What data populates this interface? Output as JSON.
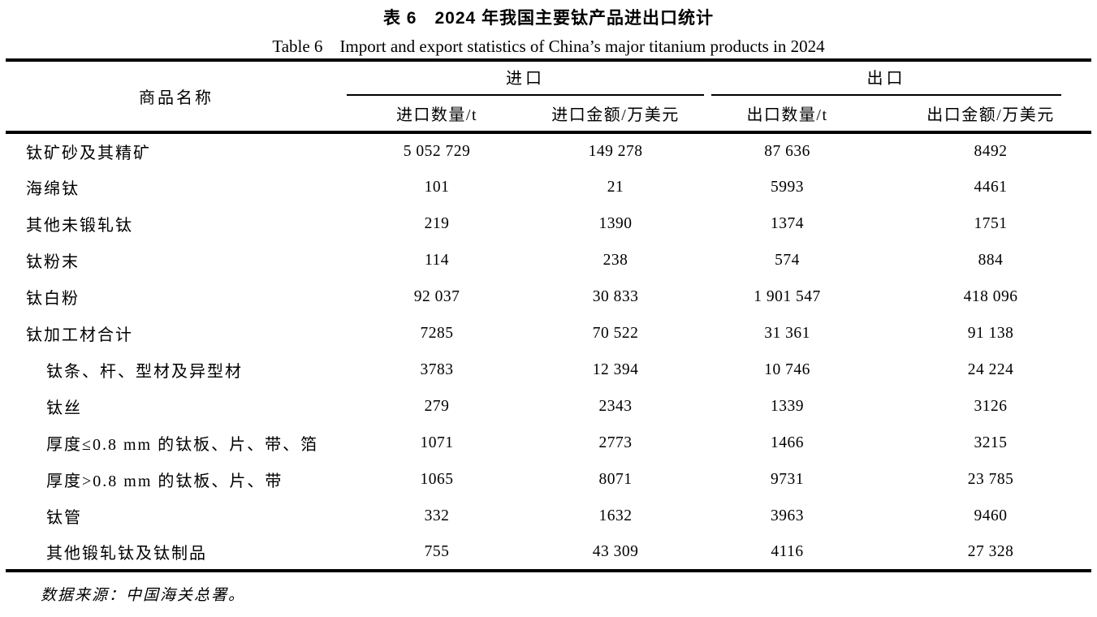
{
  "titles": {
    "zh": "表 6　2024 年我国主要钛产品进出口统计",
    "en": "Table 6　Import and export statistics of China’s major titanium products in 2024"
  },
  "table": {
    "product_column_header": "商品名称",
    "import_group_header": "进口",
    "export_group_header": "出口",
    "subheaders": {
      "import_qty": "进口数量/t",
      "import_value": "进口金额/万美元",
      "export_qty": "出口数量/t",
      "export_value": "出口金额/万美元"
    },
    "rows": [
      {
        "name": "钛矿砂及其精矿",
        "indent": false,
        "values": [
          "5 052 729",
          "149 278",
          "87 636",
          "8492"
        ]
      },
      {
        "name": "海绵钛",
        "indent": false,
        "values": [
          "101",
          "21",
          "5993",
          "4461"
        ]
      },
      {
        "name": "其他未锻轧钛",
        "indent": false,
        "values": [
          "219",
          "1390",
          "1374",
          "1751"
        ]
      },
      {
        "name": "钛粉末",
        "indent": false,
        "values": [
          "114",
          "238",
          "574",
          "884"
        ]
      },
      {
        "name": "钛白粉",
        "indent": false,
        "values": [
          "92 037",
          "30 833",
          "1 901 547",
          "418 096"
        ]
      },
      {
        "name": "钛加工材合计",
        "indent": false,
        "values": [
          "7285",
          "70 522",
          "31 361",
          "91 138"
        ]
      },
      {
        "name": "钛条、杆、型材及异型材",
        "indent": true,
        "values": [
          "3783",
          "12 394",
          "10 746",
          "24 224"
        ]
      },
      {
        "name": "钛丝",
        "indent": true,
        "values": [
          "279",
          "2343",
          "1339",
          "3126"
        ]
      },
      {
        "name": "厚度≤0.8 mm 的钛板、片、带、箔",
        "indent": true,
        "values": [
          "1071",
          "2773",
          "1466",
          "3215"
        ]
      },
      {
        "name": "厚度>0.8 mm 的钛板、片、带",
        "indent": true,
        "values": [
          "1065",
          "8071",
          "9731",
          "23 785"
        ]
      },
      {
        "name": "钛管",
        "indent": true,
        "values": [
          "332",
          "1632",
          "3963",
          "9460"
        ]
      },
      {
        "name": "其他锻轧钛及钛制品",
        "indent": true,
        "values": [
          "755",
          "43 309",
          "4116",
          "27 328"
        ]
      }
    ],
    "footnote": "数据来源：中国海关总署。"
  }
}
